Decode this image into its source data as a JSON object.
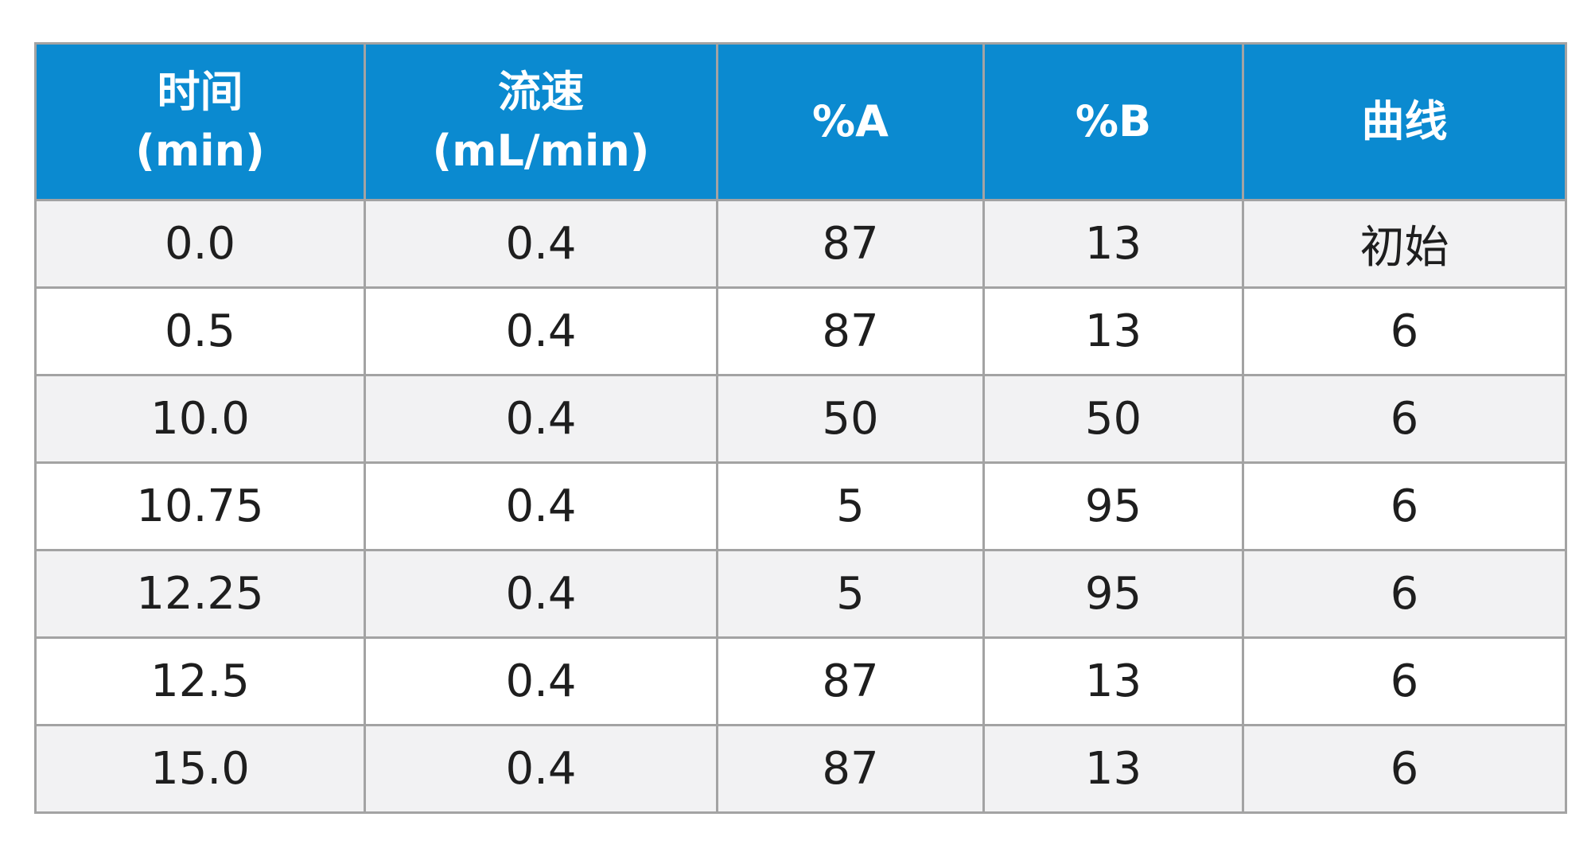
{
  "table": {
    "header_bg": "#0b8ad0",
    "header_text_color": "#ffffff",
    "stripe_color": "#f2f2f3",
    "border_color": "#a3a3a3",
    "columns": [
      {
        "line1": "时间",
        "line2": "(min)"
      },
      {
        "line1": "流速",
        "line2": "(mL/min)"
      },
      {
        "line1": "%A",
        "line2": ""
      },
      {
        "line1": "%B",
        "line2": ""
      },
      {
        "line1": "曲线",
        "line2": ""
      }
    ],
    "rows": [
      [
        "0.0",
        "0.4",
        "87",
        "13",
        "初始"
      ],
      [
        "0.5",
        "0.4",
        "87",
        "13",
        "6"
      ],
      [
        "10.0",
        "0.4",
        "50",
        "50",
        "6"
      ],
      [
        "10.75",
        "0.4",
        "5",
        "95",
        "6"
      ],
      [
        "12.25",
        "0.4",
        "5",
        "95",
        "6"
      ],
      [
        "12.5",
        "0.4",
        "87",
        "13",
        "6"
      ],
      [
        "15.0",
        "0.4",
        "87",
        "13",
        "6"
      ]
    ]
  }
}
